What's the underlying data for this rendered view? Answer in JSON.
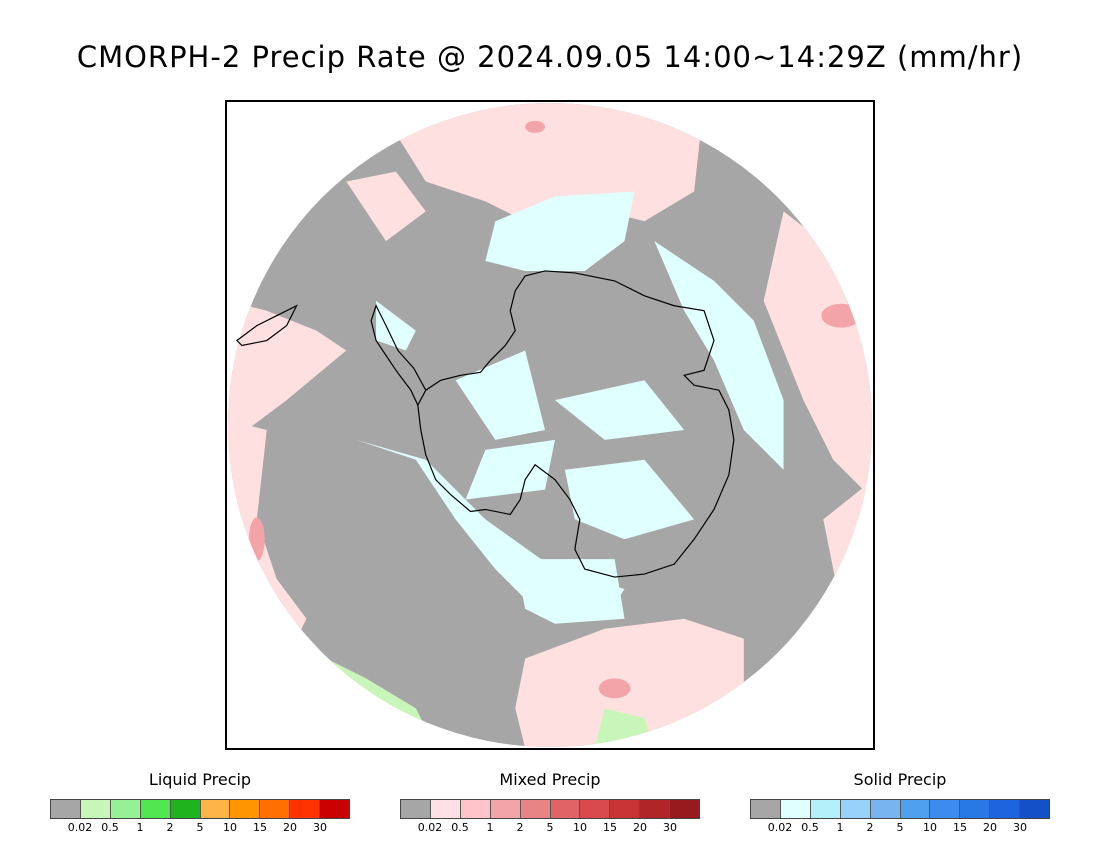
{
  "title": "CMORPH-2 Precip Rate @ 2024.09.05 14:00~14:29Z (mm/hr)",
  "map": {
    "projection": "south-polar-stereographic",
    "colors": {
      "no_precip": "#a6a6a6",
      "mixed_light": "#ffe0e0",
      "mixed_mid": "#f2a4a8",
      "mixed_heavy": "#e06b74",
      "solid_light": "#e0ffff",
      "solid_mid": "#a8e6f6",
      "liquid_light": "#c8f6b8",
      "coast": "#000000"
    }
  },
  "legends": [
    {
      "id": "liquid",
      "title": "Liquid Precip",
      "colors": [
        "#a6a6a6",
        "#c8f6b8",
        "#96f096",
        "#50e650",
        "#1eb41e",
        "#ffb446",
        "#ff9600",
        "#ff6e00",
        "#ff3200",
        "#c80000"
      ],
      "ticks": [
        "0.02",
        "0.5",
        "1",
        "2",
        "5",
        "10",
        "15",
        "20",
        "30"
      ]
    },
    {
      "id": "mixed",
      "title": "Mixed Precip",
      "colors": [
        "#a6a6a6",
        "#ffe0e6",
        "#ffc4ca",
        "#f2a4a8",
        "#e88486",
        "#e06466",
        "#d84a4c",
        "#c83436",
        "#b02628",
        "#961a1e"
      ],
      "ticks": [
        "0.02",
        "0.5",
        "1",
        "2",
        "5",
        "10",
        "15",
        "20",
        "30"
      ]
    },
    {
      "id": "solid",
      "title": "Solid Precip",
      "colors": [
        "#a6a6a6",
        "#e0ffff",
        "#b4f0fa",
        "#96d2fa",
        "#78b4f0",
        "#50a0f0",
        "#3c8cf0",
        "#2878e6",
        "#1e64dc",
        "#1450c8"
      ],
      "ticks": [
        "0.02",
        "0.5",
        "1",
        "2",
        "5",
        "10",
        "15",
        "20",
        "30"
      ]
    }
  ]
}
